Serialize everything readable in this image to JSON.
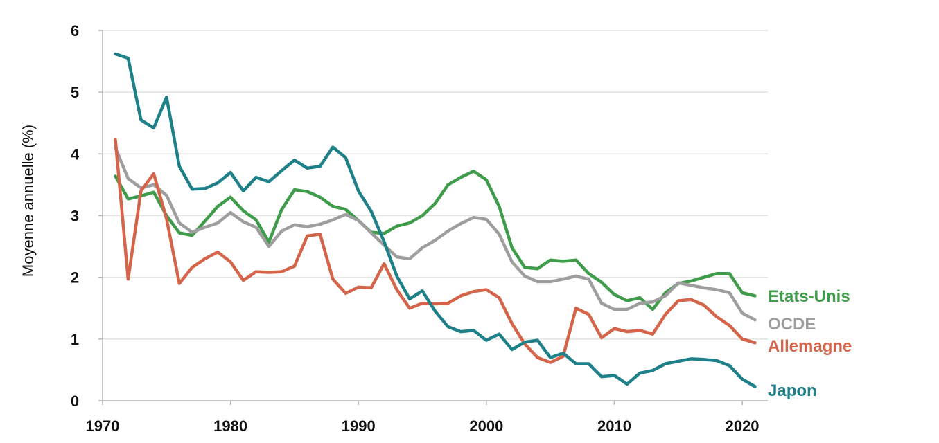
{
  "chart_data": {
    "type": "line",
    "title": "",
    "xlabel": "",
    "ylabel": "Moyenne annuelle (%)",
    "xlim": [
      1970,
      2022
    ],
    "ylim": [
      0,
      6
    ],
    "x_ticks": [
      1970,
      1980,
      1990,
      2000,
      2010,
      2020
    ],
    "y_ticks": [
      0,
      1,
      2,
      3,
      4,
      5,
      6
    ],
    "grid": "horizontal",
    "legend": "labels at line ends (right)",
    "x": [
      1971,
      1972,
      1973,
      1974,
      1975,
      1976,
      1977,
      1978,
      1979,
      1980,
      1981,
      1982,
      1983,
      1984,
      1985,
      1986,
      1987,
      1988,
      1989,
      1990,
      1991,
      1992,
      1993,
      1994,
      1995,
      1996,
      1997,
      1998,
      1999,
      2000,
      2001,
      2002,
      2003,
      2004,
      2005,
      2006,
      2007,
      2008,
      2009,
      2010,
      2011,
      2012,
      2013,
      2014,
      2015,
      2016,
      2017,
      2018,
      2019,
      2020,
      2021
    ],
    "series": [
      {
        "name": "Etats-Unis",
        "color": "#3e9c4a",
        "values": [
          3.64,
          3.27,
          3.32,
          3.38,
          3.0,
          2.72,
          2.68,
          2.91,
          3.15,
          3.3,
          3.08,
          2.93,
          2.57,
          3.1,
          3.42,
          3.39,
          3.3,
          3.15,
          3.1,
          2.92,
          2.73,
          2.71,
          2.83,
          2.88,
          3.0,
          3.2,
          3.5,
          3.62,
          3.72,
          3.58,
          3.15,
          2.48,
          2.16,
          2.14,
          2.28,
          2.26,
          2.28,
          2.06,
          1.92,
          1.72,
          1.62,
          1.67,
          1.48,
          1.75,
          1.9,
          1.94,
          2.0,
          2.06,
          2.06,
          1.75,
          1.7
        ]
      },
      {
        "name": "OCDE",
        "color": "#9e9e9e",
        "values": [
          4.1,
          3.6,
          3.45,
          3.5,
          3.33,
          2.88,
          2.73,
          2.81,
          2.88,
          3.05,
          2.9,
          2.81,
          2.5,
          2.75,
          2.85,
          2.82,
          2.86,
          2.93,
          3.02,
          2.92,
          2.72,
          2.52,
          2.33,
          2.3,
          2.48,
          2.6,
          2.75,
          2.87,
          2.97,
          2.94,
          2.7,
          2.25,
          2.02,
          1.93,
          1.93,
          1.97,
          2.02,
          1.97,
          1.58,
          1.48,
          1.48,
          1.58,
          1.6,
          1.7,
          1.91,
          1.87,
          1.83,
          1.8,
          1.75,
          1.42,
          1.31
        ]
      },
      {
        "name": "Allemagne",
        "color": "#d4644a",
        "values": [
          4.23,
          1.97,
          3.4,
          3.68,
          2.95,
          1.9,
          2.16,
          2.3,
          2.41,
          2.25,
          1.95,
          2.09,
          2.08,
          2.09,
          2.18,
          2.67,
          2.7,
          1.97,
          1.74,
          1.84,
          1.83,
          2.22,
          1.8,
          1.5,
          1.58,
          1.57,
          1.58,
          1.7,
          1.77,
          1.8,
          1.67,
          1.25,
          0.92,
          0.7,
          0.62,
          0.72,
          1.5,
          1.4,
          1.02,
          1.17,
          1.12,
          1.14,
          1.08,
          1.4,
          1.62,
          1.64,
          1.55,
          1.36,
          1.22,
          1.0,
          0.94
        ]
      },
      {
        "name": "Japon",
        "color": "#1e8088",
        "values": [
          5.62,
          5.55,
          4.55,
          4.42,
          4.92,
          3.8,
          3.43,
          3.44,
          3.53,
          3.7,
          3.4,
          3.62,
          3.55,
          3.73,
          3.9,
          3.77,
          3.8,
          4.11,
          3.94,
          3.4,
          3.07,
          2.58,
          2.02,
          1.65,
          1.78,
          1.45,
          1.2,
          1.12,
          1.14,
          0.98,
          1.08,
          0.83,
          0.95,
          0.98,
          0.7,
          0.77,
          0.6,
          0.6,
          0.39,
          0.41,
          0.27,
          0.45,
          0.49,
          0.6,
          0.64,
          0.68,
          0.67,
          0.65,
          0.57,
          0.35,
          0.23
        ]
      }
    ]
  }
}
